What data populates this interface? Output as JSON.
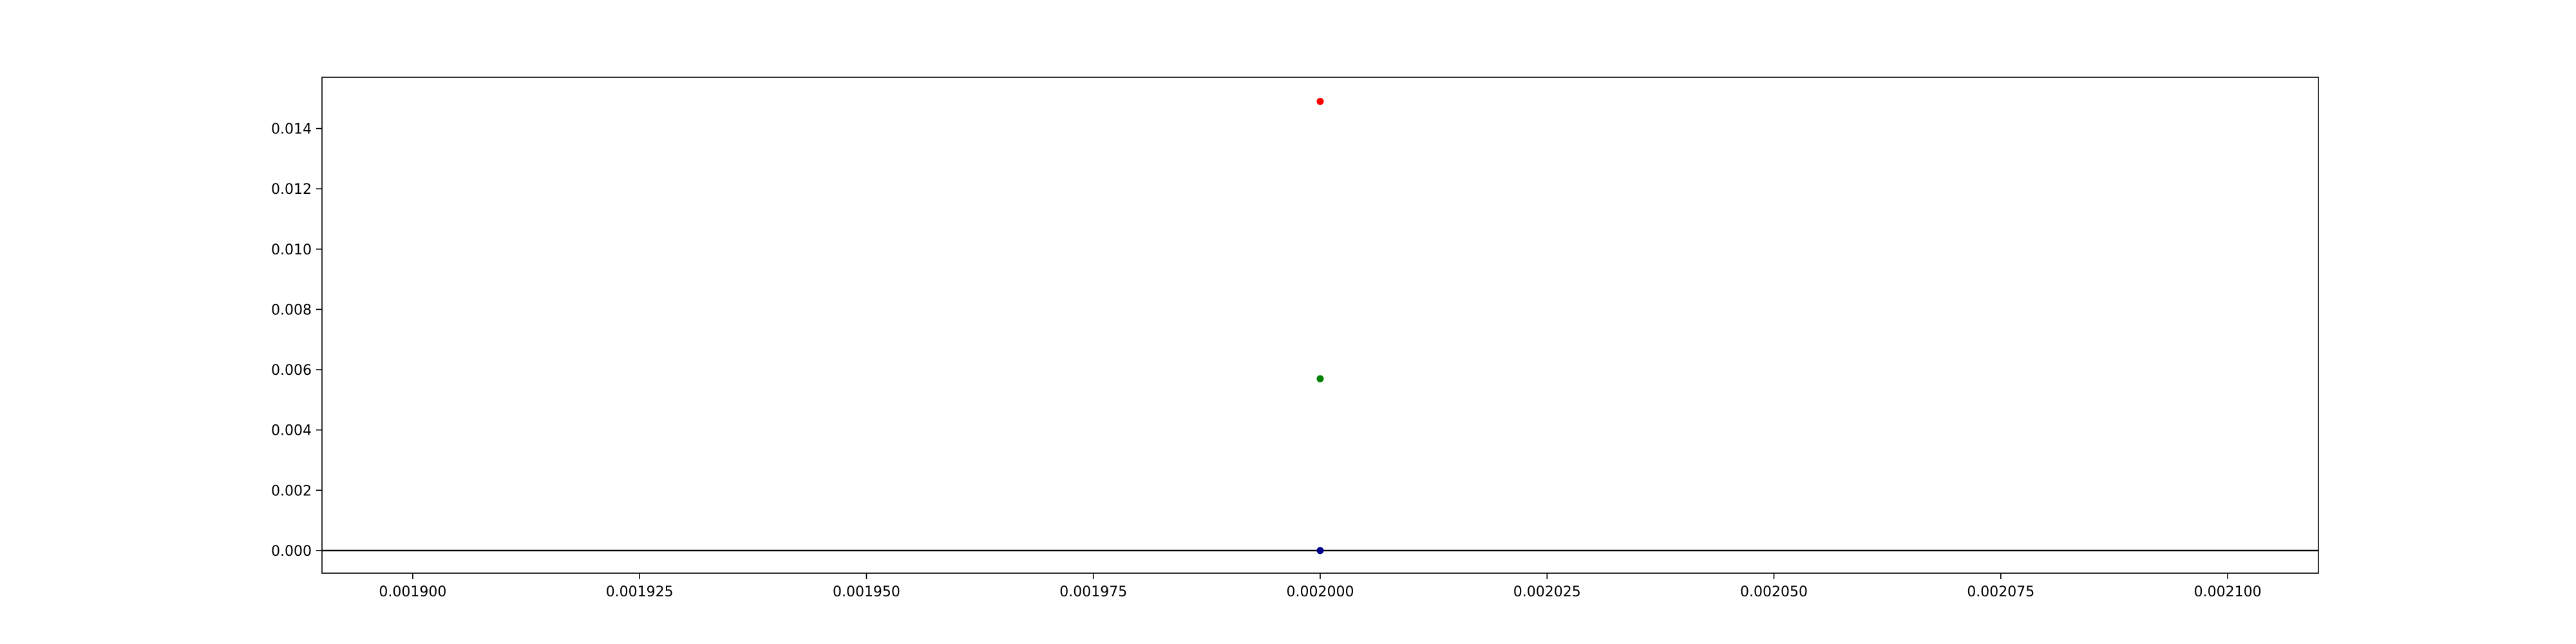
{
  "chart_data": {
    "type": "scatter",
    "title": "",
    "xlabel": "",
    "ylabel": "",
    "xlim": [
      0.00189,
      0.00211
    ],
    "ylim": [
      -0.00075,
      0.0157
    ],
    "x_ticks": [
      0.0019,
      0.001925,
      0.00195,
      0.001975,
      0.002,
      0.002025,
      0.00205,
      0.002075,
      0.0021
    ],
    "x_tick_labels": [
      "0.001900",
      "0.001925",
      "0.001950",
      "0.001975",
      "0.002000",
      "0.002025",
      "0.002050",
      "0.002075",
      "0.002100"
    ],
    "y_ticks": [
      0,
      0.002,
      0.004,
      0.006,
      0.008,
      0.01,
      0.012,
      0.014
    ],
    "y_tick_labels": [
      "0.000",
      "0.002",
      "0.004",
      "0.006",
      "0.008",
      "0.010",
      "0.012",
      "0.014"
    ],
    "grid": false,
    "horizontal_lines": [
      {
        "y": 0,
        "color": "#000000"
      }
    ],
    "points": [
      {
        "x": 0.002,
        "y": 0.0149,
        "color": "#ff0000"
      },
      {
        "x": 0.002,
        "y": 0.0057,
        "color": "#008000"
      },
      {
        "x": 0.002,
        "y": 0.0,
        "color": "#00008b"
      }
    ]
  }
}
